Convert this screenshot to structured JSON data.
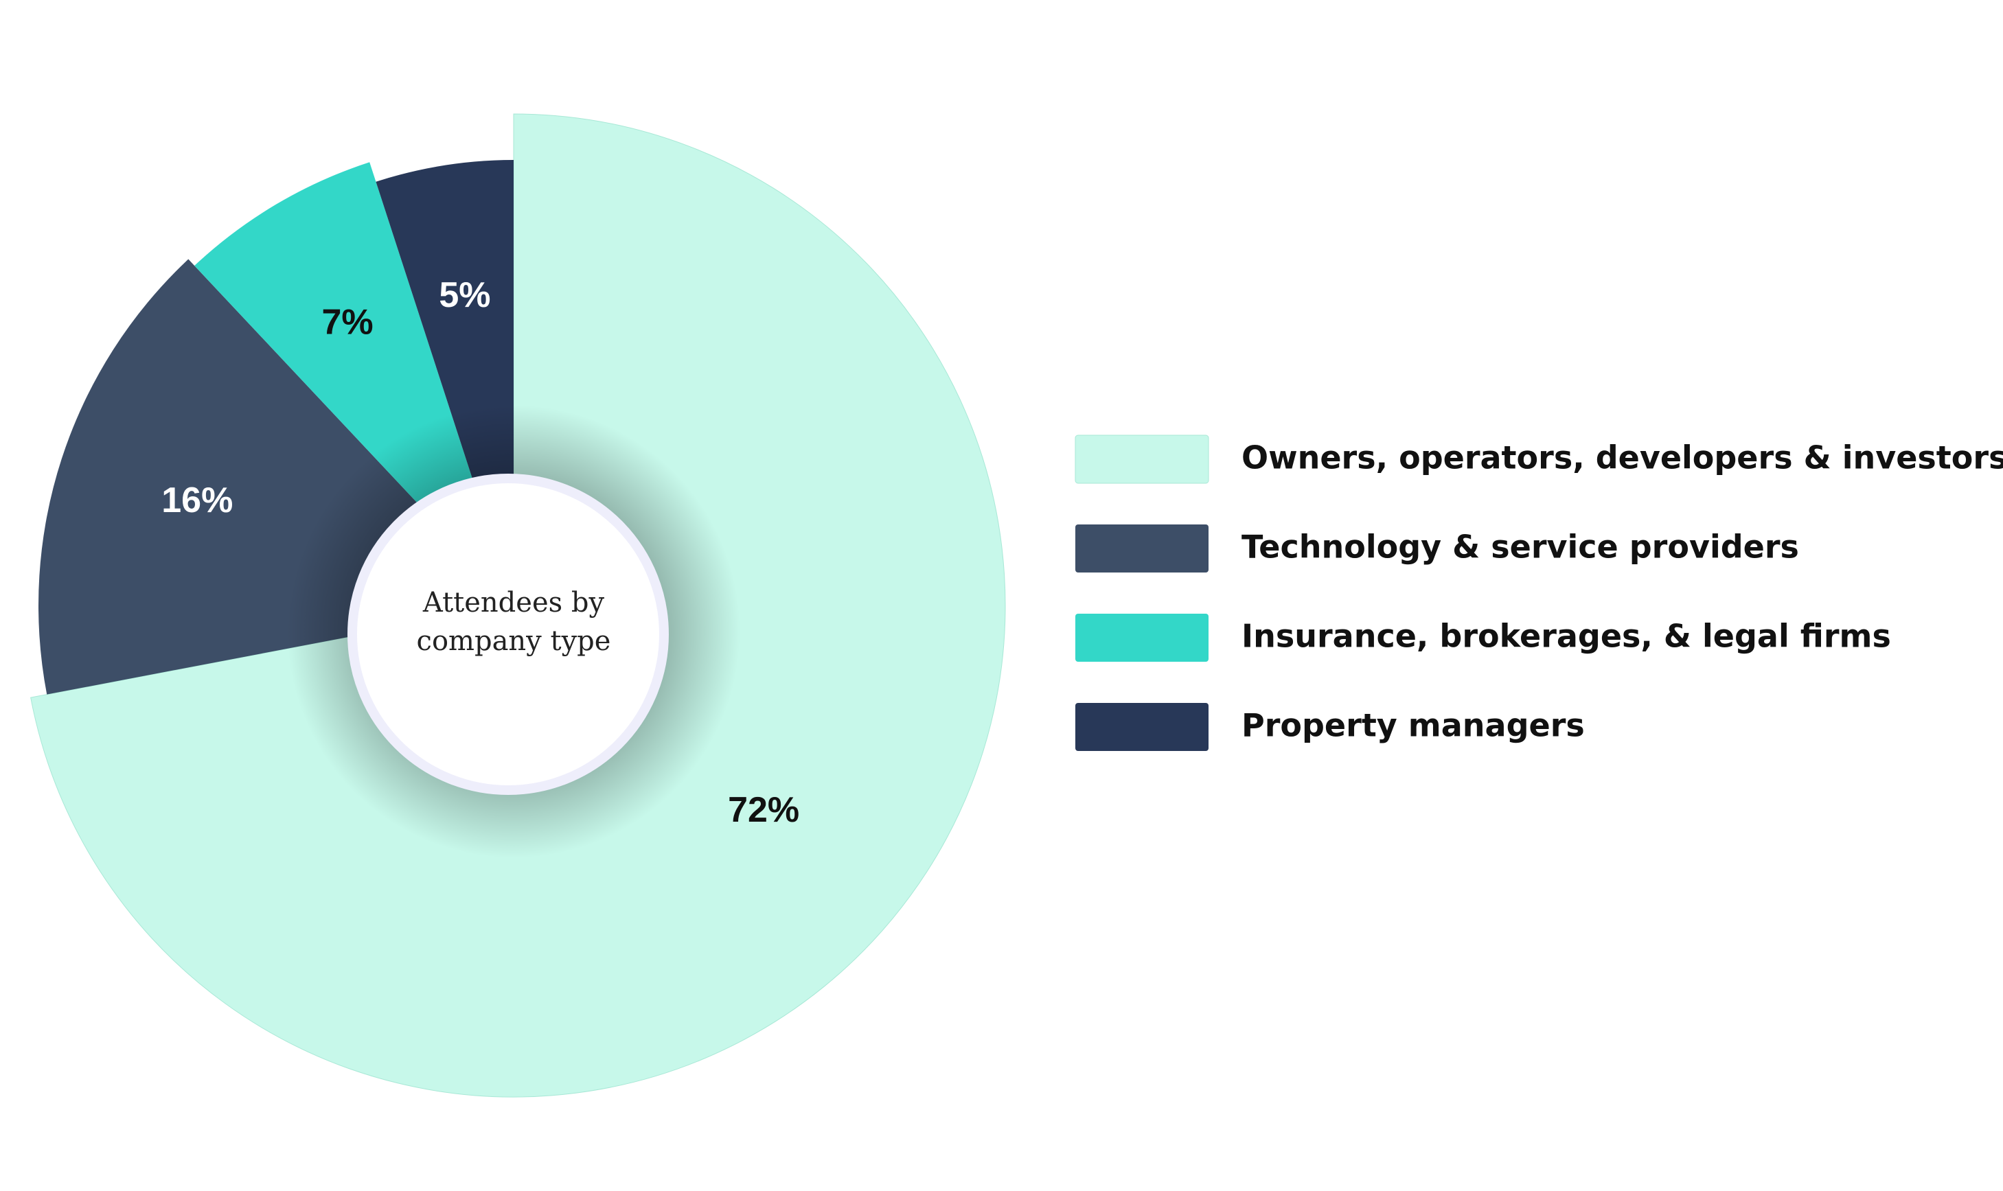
{
  "chart_data": {
    "type": "pie",
    "title": "Attendees by company type",
    "categories": [
      "Owners, operators, developers & investors",
      "Technology & service providers",
      "Insurance, brokerages, & legal firms",
      "Property managers"
    ],
    "values": [
      72,
      16,
      7,
      5
    ],
    "value_labels": [
      "72%",
      "16%",
      "7%",
      "5%"
    ],
    "colors": [
      "#c7f8ea",
      "#3d4e67",
      "#33d7c8",
      "#283858"
    ],
    "legend": "right"
  }
}
